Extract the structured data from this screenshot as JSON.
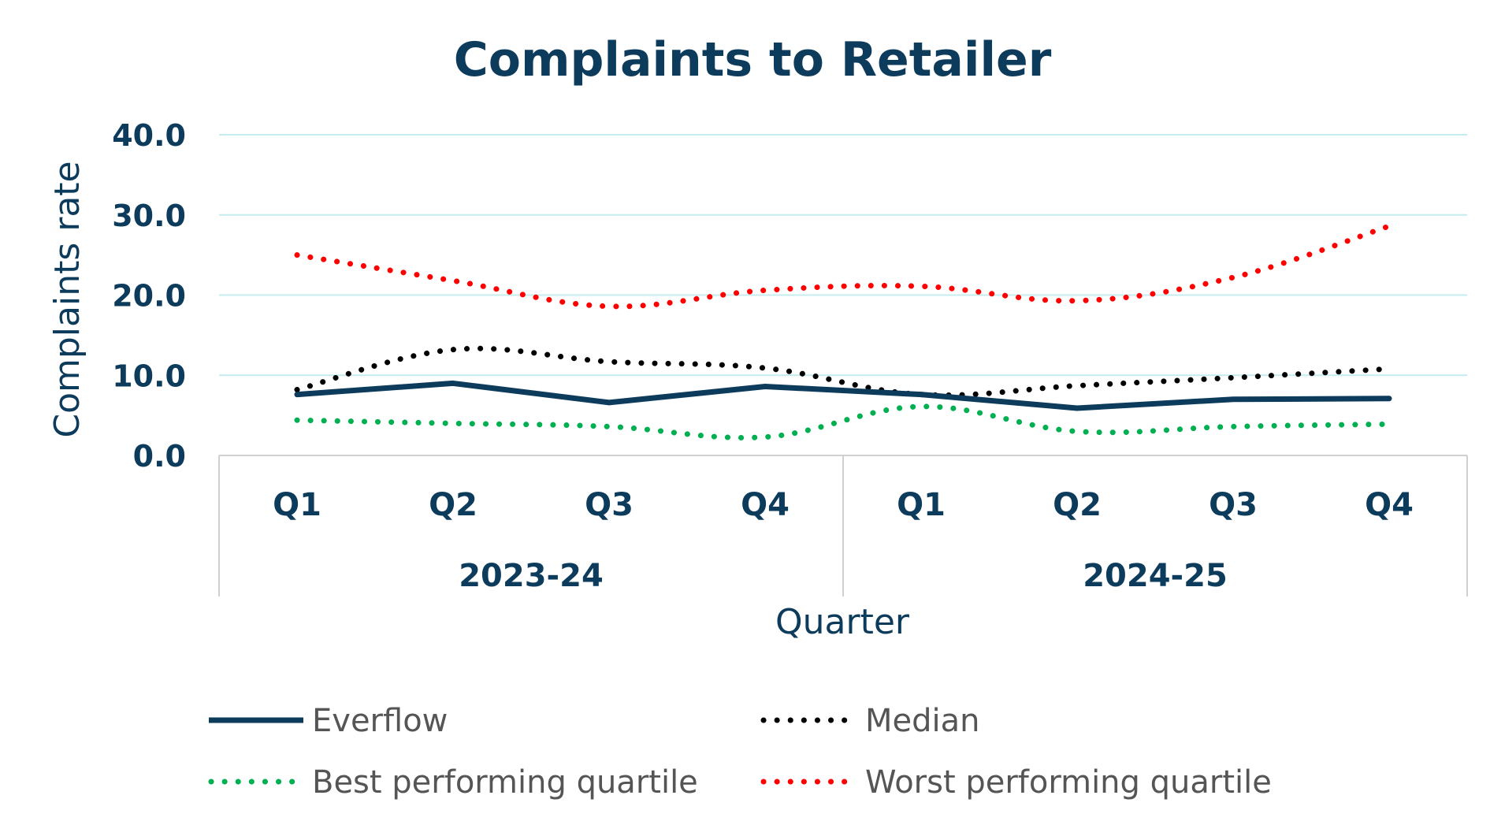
{
  "chart_data": {
    "type": "line",
    "title": "Complaints to Retailer",
    "xlabel": "Quarter",
    "ylabel": "Complaints rate",
    "ylim": [
      0,
      40
    ],
    "yticks": [
      "40.0",
      "30.0",
      "20.0",
      "10.0",
      "0.0"
    ],
    "categories": [
      "Q1",
      "Q2",
      "Q3",
      "Q4",
      "Q1",
      "Q2",
      "Q3",
      "Q4"
    ],
    "groups": [
      {
        "label": "2023-24",
        "count": 4
      },
      {
        "label": "2024-25",
        "count": 4
      }
    ],
    "grid": true,
    "legend_position": "bottom",
    "series": [
      {
        "name": "Everflow",
        "style": "solid",
        "color": "#0d3b5c",
        "values": [
          7.6,
          9.0,
          6.6,
          8.6,
          7.6,
          5.9,
          7.0,
          7.1
        ]
      },
      {
        "name": "Median",
        "style": "dotted",
        "color": "#000000",
        "values": [
          8.2,
          13.2,
          11.7,
          10.9,
          7.6,
          8.7,
          9.7,
          10.8
        ]
      },
      {
        "name": "Best performing quartile",
        "style": "dotted",
        "color": "#00b050",
        "values": [
          4.4,
          4.0,
          3.6,
          2.3,
          6.1,
          3.0,
          3.6,
          3.9
        ]
      },
      {
        "name": "Worst performing quartile",
        "style": "dotted",
        "color": "#ff0000",
        "values": [
          25.0,
          21.8,
          18.6,
          20.6,
          21.1,
          19.3,
          22.2,
          28.6
        ]
      }
    ]
  }
}
